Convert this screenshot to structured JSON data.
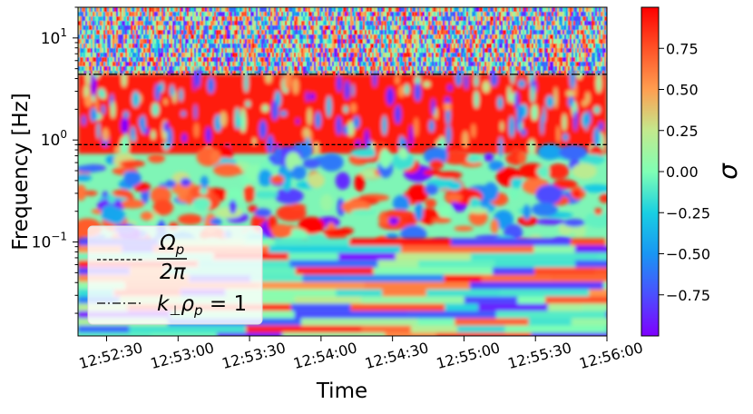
{
  "chart_data": {
    "type": "heatmap",
    "title": "",
    "xlabel": "Time",
    "ylabel": "Frequency [Hz]",
    "yscale": "log",
    "ylim": [
      0.012,
      20
    ],
    "xlim_seconds": [
      0,
      222
    ],
    "x_ticks": [
      {
        "label": "12:52:30",
        "t": 12
      },
      {
        "label": "12:53:00",
        "t": 42
      },
      {
        "label": "12:53:30",
        "t": 72
      },
      {
        "label": "12:54:00",
        "t": 102
      },
      {
        "label": "12:54:30",
        "t": 132
      },
      {
        "label": "12:55:00",
        "t": 162
      },
      {
        "label": "12:55:30",
        "t": 192
      },
      {
        "label": "12:56:00",
        "t": 222
      }
    ],
    "y_ticks": [
      {
        "label": "10",
        "exp": "1",
        "value": 10
      },
      {
        "label": "10",
        "exp": "0",
        "value": 1
      },
      {
        "label": "10",
        "exp": "−1",
        "value": 0.1
      }
    ],
    "reference_lines": [
      {
        "name": "proton-gyrofrequency",
        "value_hz": 0.9,
        "style": "dashed",
        "legend_label": "Ω_p / 2π"
      },
      {
        "name": "k-perp-rho-p",
        "value_hz": 4.4,
        "style": "dashdot",
        "legend_label": "k⊥ρp = 1"
      }
    ],
    "legend": {
      "position": "lower-left",
      "entries": [
        {
          "label_numerator": "Ω",
          "label_numerator_sub": "p",
          "label_denominator": "2π"
        },
        {
          "label_main": "k",
          "label_sub1": "⊥",
          "label_mid": "ρ",
          "label_sub2": "p",
          "label_tail": " = 1"
        }
      ]
    },
    "colorbar": {
      "label": "σ",
      "range": [
        -1,
        1
      ],
      "ticks": [
        {
          "label": "0.75",
          "value": 0.75
        },
        {
          "label": "0.50",
          "value": 0.5
        },
        {
          "label": "0.25",
          "value": 0.25
        },
        {
          "label": "0.00",
          "value": 0.0
        },
        {
          "label": "−0.25",
          "value": -0.25
        },
        {
          "label": "−0.50",
          "value": -0.5
        },
        {
          "label": "−0.75",
          "value": -0.75
        }
      ],
      "colormap": "rainbow"
    },
    "heatmap_description": {
      "above_4.4Hz": "noisy mixed values",
      "0.9_to_4.4Hz": "mostly high positive sigma (~0.9)",
      "0.1_to_0.9Hz": "patchy, mix of positive and negative",
      "below_0.1Hz": "horizontal bands of mixed sigma"
    }
  }
}
